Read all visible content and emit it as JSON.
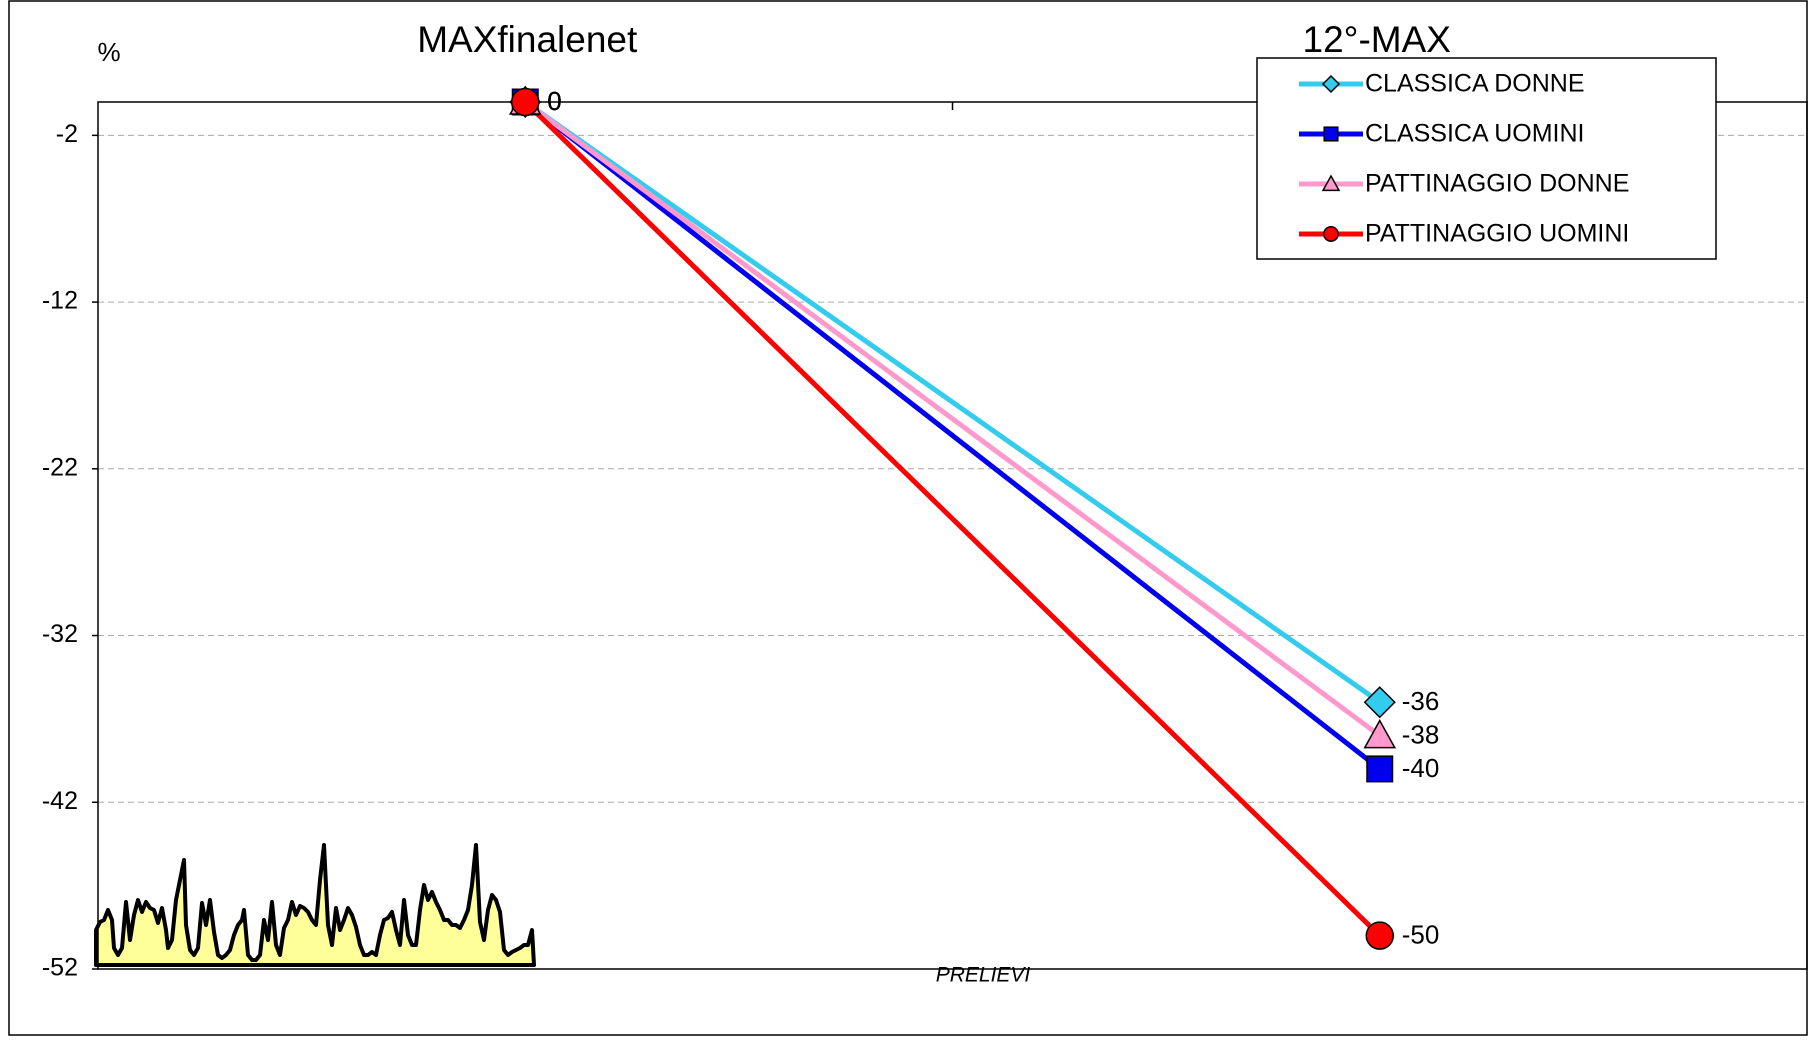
{
  "chart_data": {
    "type": "line",
    "y_label": "%",
    "x_label": "PRELIEVI",
    "categories": [
      "MAXfinalenet",
      "12°-MAX"
    ],
    "series": [
      {
        "name": "CLASSICA DONNE",
        "color": "#33ccee",
        "marker": "diamond",
        "values": [
          0,
          -36
        ]
      },
      {
        "name": "CLASSICA UOMINI",
        "color": "#0000ee",
        "marker": "square",
        "values": [
          0,
          -40
        ]
      },
      {
        "name": "PATTINAGGIO DONNE",
        "color": "#ff99cc",
        "marker": "triangle",
        "values": [
          0,
          -38
        ]
      },
      {
        "name": "PATTINAGGIO UOMINI",
        "color": "#ff0000",
        "marker": "circle",
        "values": [
          0,
          -50
        ]
      }
    ],
    "ylim": [
      -52,
      0
    ],
    "yticks": [
      -2,
      -12,
      -22,
      -32,
      -42,
      -52
    ],
    "grid": true,
    "legend": "top-right"
  }
}
